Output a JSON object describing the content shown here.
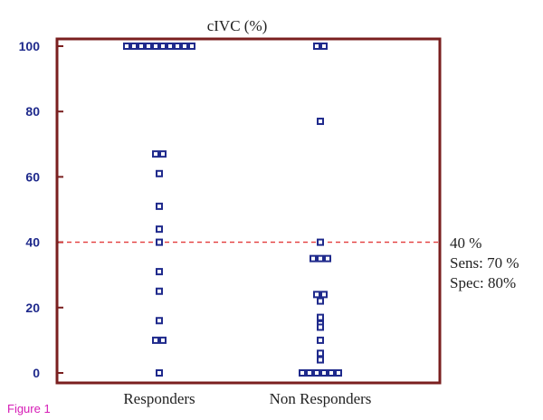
{
  "figure_label": "Figure 1",
  "colors": {
    "frame": "#7a1f1f",
    "marker": "#1f2a8c",
    "tick_label": "#1f2a8c",
    "threshold_line": "#e23b3b",
    "figure_label": "#d61cb6",
    "text": "#222222"
  },
  "chart_data": {
    "type": "scatter",
    "subtype": "dot-plot",
    "title": "cIVC (%)",
    "xlabel": "",
    "ylabel": "",
    "ylim": [
      0,
      100
    ],
    "yticks": [
      0,
      20,
      40,
      60,
      80,
      100
    ],
    "grid": false,
    "categories": [
      "Responders",
      "Non Responders"
    ],
    "series": [
      {
        "values": [
          100,
          100,
          100,
          100,
          100,
          100,
          100,
          100,
          100,
          100,
          67,
          67,
          61,
          51,
          44,
          40,
          31,
          25,
          16,
          10,
          10,
          0
        ]
      },
      {
        "values": [
          100,
          100,
          77,
          40,
          35,
          35,
          35,
          24,
          24,
          22,
          17,
          15,
          14,
          10,
          6,
          4,
          0,
          0,
          0,
          0,
          0,
          0
        ]
      }
    ],
    "threshold": {
      "value": 40,
      "annotations": [
        "40 %",
        "Sens: 70 %",
        "Spec: 80%"
      ]
    }
  }
}
